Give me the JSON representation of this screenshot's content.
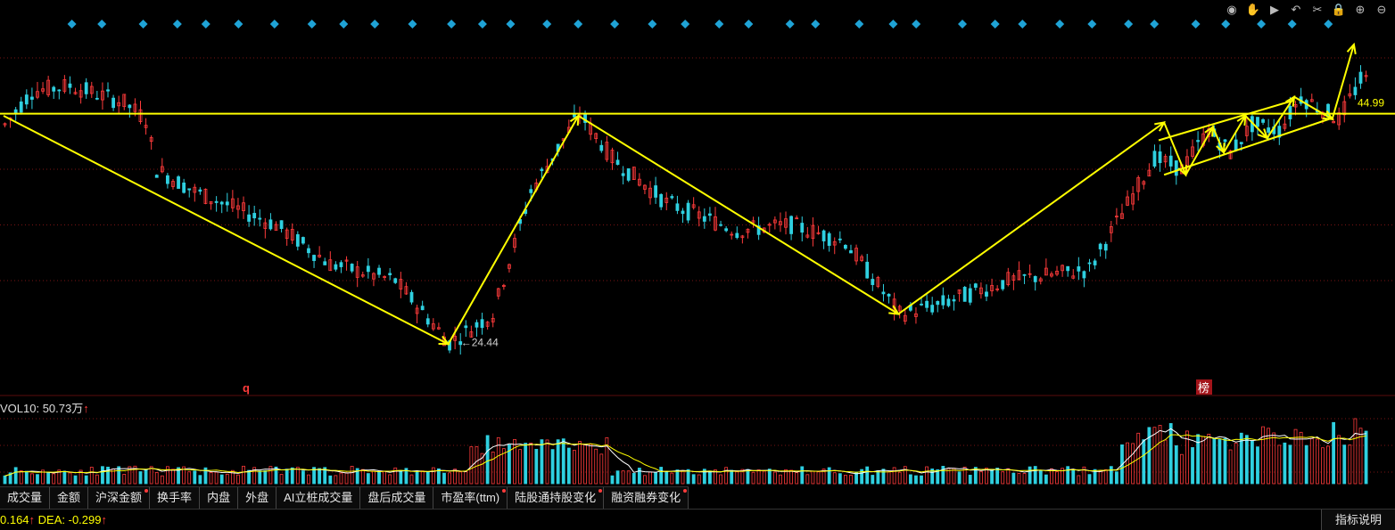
{
  "toolbar": {
    "icons": [
      "eye-icon",
      "hand-icon",
      "play-icon",
      "undo-icon",
      "scissors-icon",
      "lock-icon",
      "zoom-in-icon",
      "zoom-out-icon"
    ],
    "glyphs": [
      "◉",
      "✋",
      "▶",
      "↶",
      "✂",
      "🔒",
      "⊕",
      "⊖"
    ]
  },
  "chart_data": {
    "type": "candlestick",
    "price_range": [
      20,
      52
    ],
    "levels": {
      "horizontal_line": 44.99,
      "horizontal_label": "44.99",
      "low_label": "←24.44",
      "low_value": 24.44
    },
    "markers": {
      "left_marker": "q",
      "right_badge": "榜",
      "diamond_count": 38
    },
    "pattern_path": [
      {
        "i": 0,
        "price": 44.8
      },
      {
        "i": 82,
        "price": 24.3
      },
      {
        "i": 106,
        "price": 44.8
      },
      {
        "i": 165,
        "price": 27.0
      },
      {
        "i": 214,
        "price": 44.2
      },
      {
        "i": 218,
        "price": 39.5
      },
      {
        "i": 223,
        "price": 43.8
      },
      {
        "i": 225,
        "price": 41.5
      },
      {
        "i": 229,
        "price": 44.8
      },
      {
        "i": 233,
        "price": 42.8
      },
      {
        "i": 238,
        "price": 46.5
      },
      {
        "i": 245,
        "price": 44.5
      },
      {
        "i": 249,
        "price": 51.2
      }
    ],
    "channel_upper": [
      {
        "i": 213,
        "price": 42.6
      },
      {
        "i": 238,
        "price": 46.2
      }
    ],
    "channel_lower": [
      {
        "i": 214,
        "price": 39.5
      },
      {
        "i": 245,
        "price": 44.6
      }
    ],
    "volume": {
      "label": "VOL10: 50.73万",
      "arrow": "↑"
    }
  },
  "tabs": [
    {
      "label": "成交量",
      "dot": false
    },
    {
      "label": "金额",
      "dot": false
    },
    {
      "label": "沪深金额",
      "dot": true
    },
    {
      "label": "换手率",
      "dot": false
    },
    {
      "label": "内盘",
      "dot": false
    },
    {
      "label": "外盘",
      "dot": false
    },
    {
      "label": "AI立桩成交量",
      "dot": false
    },
    {
      "label": "盘后成交量",
      "dot": false
    },
    {
      "label": "市盈率(ttm)",
      "dot": true
    },
    {
      "label": "陆股通持股变化",
      "dot": true
    },
    {
      "label": "融资融券变化",
      "dot": true
    }
  ],
  "macd": {
    "value1": "0.164",
    "arrow1": "↑",
    "dea_label": " DEA: ",
    "dea_value": "-0.299",
    "arrow2": "↑"
  },
  "help_label": "指标说明",
  "colors": {
    "up": "#ff3b3b",
    "down": "#2fd0e0",
    "pattern": "#ffff00",
    "diamond": "#1fa3d6",
    "grid": "#7a1414"
  }
}
